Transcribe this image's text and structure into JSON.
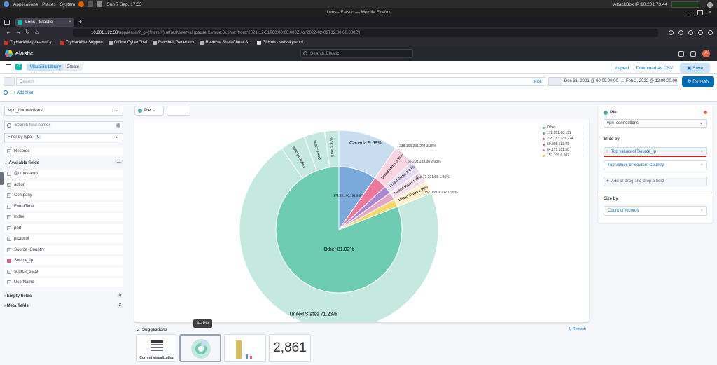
{
  "os_bar": {
    "menus": [
      "Applications",
      "Places",
      "System"
    ],
    "clock": "Sun 7 Sep, 17:53",
    "attackbox_ip": "AttackBox IP:10.201.73.44"
  },
  "window_title": "Lens - Elastic — Mozilla Firefox",
  "browser": {
    "tab_title": "Lens - Elastic",
    "url_host": "10.201.122.38",
    "url_path": "/app/lens#/?_g=(filters:!(),refreshInterval:(pause:!t,value:0),time:(from:'2021-12-31T00:00:00.000Z',to:'2022-02-02T12:00:00.000Z'))",
    "bookmarks": [
      "TryHackMe | Learn Cy...",
      "TryHackMe Support",
      "Offline CyberChef",
      "Revshell Generator",
      "Reverse Shell Cheat S...",
      "GitHub - swisskyrepo/..."
    ]
  },
  "kibana": {
    "brand": "elastic",
    "search_placeholder": "Search Elastic",
    "avatar_initial": "A",
    "space_initial": "D",
    "breadcrumbs": [
      "Visualize Library",
      "Create"
    ],
    "actions": {
      "inspect": "Inspect",
      "download": "Download as CSV",
      "save": "Save"
    },
    "query_placeholder": "Search",
    "kql": "KQL",
    "date_start": "Dec 31, 2021 @ 00:00:00.00",
    "date_arrow": "→",
    "date_end": "Feb 2, 2022 @ 12:00:00.00",
    "refresh": "Refresh",
    "add_filter": "+ Add filter"
  },
  "sidebar": {
    "index_pattern": "vpn_connections",
    "field_search_placeholder": "Search field names",
    "filter_by_type": "Filter by type",
    "filter_count": "0",
    "records": "Records",
    "available_label": "Available fields",
    "available_count": "11",
    "fields": [
      {
        "name": "@timestamp",
        "type": "date"
      },
      {
        "name": "action",
        "type": "t"
      },
      {
        "name": "Company",
        "type": "t"
      },
      {
        "name": "EventTime",
        "type": "date"
      },
      {
        "name": "index",
        "type": "t"
      },
      {
        "name": "port",
        "type": "#"
      },
      {
        "name": "protocol",
        "type": "t"
      },
      {
        "name": "Source_Country",
        "type": "t"
      },
      {
        "name": "Source_ip",
        "type": "ip"
      },
      {
        "name": "source_state",
        "type": "t"
      },
      {
        "name": "UserName",
        "type": "t"
      }
    ],
    "empty_label": "Empty fields",
    "empty_count": "0",
    "meta_label": "Meta fields",
    "meta_count": "3"
  },
  "workspace": {
    "chart_type_label": "Pie"
  },
  "chart_data": {
    "type": "pie",
    "inner_ring": [
      {
        "label": "Other",
        "value": 81.02,
        "color": "#6dccb1",
        "text": "Other 81.02%"
      },
      {
        "label": "172.201.60.191",
        "value": 9.68,
        "color": "#79aad9",
        "text": "172.201.60.191 9.68%"
      },
      {
        "label": "238.163.231.224",
        "value": 3.36,
        "color": "#ee789d",
        "text": "238.163.231.224 3.36%"
      },
      {
        "label": "69.208.133.98",
        "value": 2.03,
        "color": "#a987d1",
        "text": "69.208.133.98 2.03%"
      },
      {
        "label": "64.171.101.58",
        "value": 1.96,
        "color": "#e4a6c7",
        "text": "64.171.101.58 1.96%"
      },
      {
        "label": "157.109.0.102",
        "value": 1.96,
        "color": "#f1d86f",
        "text": "157.109.0.102 1.96%"
      }
    ],
    "outer_ring": [
      {
        "label": "United States",
        "value": 71.23,
        "color": "#c5e9de",
        "text": "United States 71.23%"
      },
      {
        "label": "England",
        "value": 4.09,
        "color": "#c5e9de",
        "text": "England 4.09%"
      },
      {
        "label": "Other",
        "value": 3.38,
        "color": "#c5e9de",
        "text": "Other 3.38%"
      },
      {
        "label": "Israel",
        "value": 2.31,
        "color": "#c5e9de",
        "text": "Israel 2.31%"
      },
      {
        "label": "Canada",
        "value": 9.68,
        "color": "#c9ddf0",
        "text": "Canada 9.68%"
      },
      {
        "label": "United States",
        "value": 3.36,
        "color": "#f9d4e1",
        "text": "United States 3.36%"
      },
      {
        "label": "United States",
        "value": 2.03,
        "color": "#e5dcf1",
        "text": "United States 2.03%"
      },
      {
        "label": "United States",
        "value": 1.96,
        "color": "#f5e2ed",
        "text": "United States 1.96%"
      },
      {
        "label": "United States",
        "value": 1.96,
        "color": "#fbf1cd",
        "text": "United States 1.96%"
      }
    ],
    "legend": [
      {
        "label": "Other",
        "color": "#54b399"
      },
      {
        "label": "172.201.60.191",
        "color": "#6092c0"
      },
      {
        "label": "238.163.231.224",
        "color": "#d36086"
      },
      {
        "label": "69.208.133.98",
        "color": "#9170b8"
      },
      {
        "label": "64.171.101.58",
        "color": "#ca8eae"
      },
      {
        "label": "157.109.0.102",
        "color": "#d6bf57"
      }
    ]
  },
  "suggestions": {
    "title": "Suggestions",
    "refresh": "Refresh",
    "current_label": "Current visualization",
    "tooltip": "As Pie",
    "metric_value": "2,861"
  },
  "config": {
    "title": "Pie",
    "datasource": "vpn_connections",
    "slice_by_label": "Slice by",
    "slice_items": [
      "Top values of Source_ip",
      "Top values of Source_Country"
    ],
    "add_field": "Add or drag-and-drop a field",
    "size_by_label": "Size by",
    "size_item": "Count of records"
  }
}
